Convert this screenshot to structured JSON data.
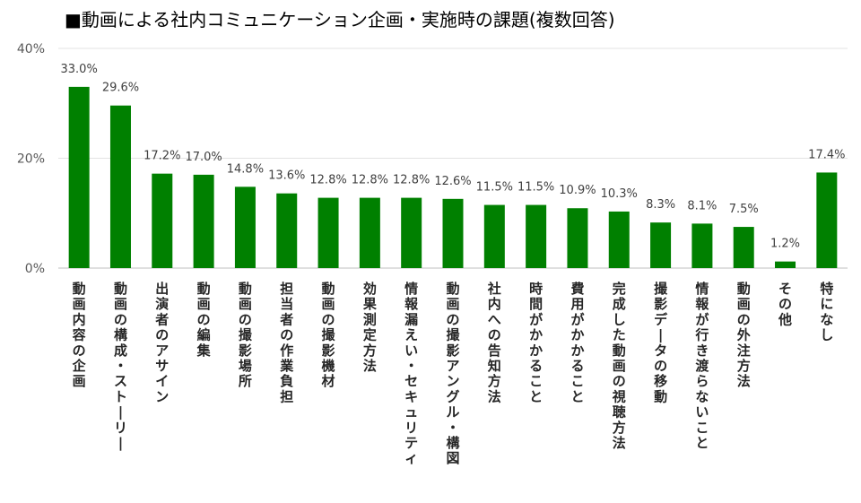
{
  "chart_data": {
    "type": "bar",
    "title": "■動画による社内コミュニケーション企画・実施時の課題(複数回答)",
    "xlabel": "",
    "ylabel": "",
    "ylim": [
      0,
      40
    ],
    "yticks": [
      0,
      20,
      40
    ],
    "ytick_labels": [
      "0%",
      "20%",
      "40%"
    ],
    "grid": true,
    "bar_color": "#008000",
    "categories": [
      "動画内容の企画",
      "動画の構成・ストーリー",
      "出演者のアサイン",
      "動画の編集",
      "動画の撮影場所",
      "担当者の作業負担",
      "動画の撮影機材",
      "効果測定方法",
      "情報漏えい・セキュリティ",
      "動画の撮影アングル・構図",
      "社内への告知方法",
      "時間がかかること",
      "費用がかかること",
      "完成した動画の視聴方法",
      "撮影データの移動",
      "情報が行き渡らないこと",
      "動画の外注方法",
      "その他",
      "特になし"
    ],
    "values": [
      33.0,
      29.6,
      17.2,
      17.0,
      14.8,
      13.6,
      12.8,
      12.8,
      12.8,
      12.6,
      11.5,
      11.5,
      10.9,
      10.3,
      8.3,
      8.1,
      7.5,
      1.2,
      17.4
    ],
    "value_labels": [
      "33.0%",
      "29.6%",
      "17.2%",
      "17.0%",
      "14.8%",
      "13.6%",
      "12.8%",
      "12.8%",
      "12.8%",
      "12.6%",
      "11.5%",
      "11.5%",
      "10.9%",
      "10.3%",
      "8.3%",
      "8.1%",
      "7.5%",
      "1.2%",
      "17.4%"
    ]
  }
}
